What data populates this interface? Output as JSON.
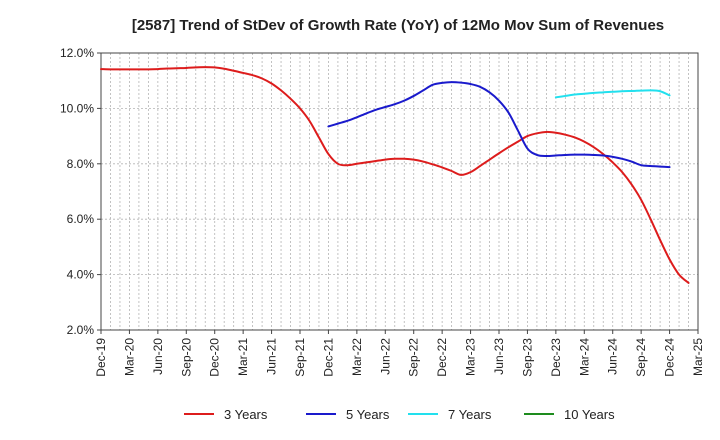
{
  "chart_data": {
    "type": "line",
    "title": "[2587]  Trend of StDev of Growth Rate (YoY) of 12Mo Mov Sum of Revenues",
    "xlabel": "",
    "ylabel": "",
    "ylim": [
      2.0,
      12.0
    ],
    "y_ticks": [
      "2.0%",
      "4.0%",
      "6.0%",
      "8.0%",
      "10.0%",
      "12.0%"
    ],
    "y_tick_values": [
      2.0,
      4.0,
      6.0,
      8.0,
      10.0,
      12.0
    ],
    "x_tick_labels": [
      "Dec-19",
      "Mar-20",
      "Jun-20",
      "Sep-20",
      "Dec-20",
      "Mar-21",
      "Jun-21",
      "Sep-21",
      "Dec-21",
      "Mar-22",
      "Jun-22",
      "Sep-22",
      "Dec-22",
      "Mar-23",
      "Jun-23",
      "Sep-23",
      "Dec-23",
      "Mar-24",
      "Jun-24",
      "Sep-24",
      "Dec-24",
      "Mar-25"
    ],
    "x_months_start": "Dec-19",
    "x_months_total": 63,
    "grid": true,
    "legend_position": "bottom",
    "series": [
      {
        "name": "3 Years",
        "color": "#dd1c1c",
        "start_month_index": 0,
        "values": [
          11.42,
          11.41,
          11.41,
          11.41,
          11.41,
          11.41,
          11.42,
          11.44,
          11.45,
          11.46,
          11.48,
          11.49,
          11.48,
          11.43,
          11.36,
          11.28,
          11.2,
          11.08,
          10.9,
          10.65,
          10.35,
          10.0,
          9.55,
          8.95,
          8.35,
          8.0,
          7.95,
          8.0,
          8.05,
          8.1,
          8.15,
          8.18,
          8.18,
          8.15,
          8.08,
          7.98,
          7.87,
          7.74,
          7.6,
          7.7,
          7.92,
          8.15,
          8.38,
          8.6,
          8.8,
          9.0,
          9.1,
          9.15,
          9.12,
          9.05,
          8.95,
          8.8,
          8.6,
          8.35,
          8.05,
          7.7,
          7.25,
          6.7,
          6.0,
          5.25,
          4.55,
          4.0,
          3.7
        ]
      },
      {
        "name": "5 Years",
        "color": "#1a1acc",
        "start_month_index": 24,
        "values": [
          9.35,
          9.45,
          9.55,
          9.68,
          9.82,
          9.95,
          10.05,
          10.15,
          10.28,
          10.45,
          10.65,
          10.85,
          10.92,
          10.95,
          10.93,
          10.88,
          10.78,
          10.58,
          10.28,
          9.85,
          9.2,
          8.55,
          8.32,
          8.28,
          8.3,
          8.32,
          8.33,
          8.33,
          8.32,
          8.3,
          8.25,
          8.18,
          8.08,
          7.95,
          7.92,
          7.9,
          7.88
        ]
      },
      {
        "name": "7 Years",
        "color": "#22e0ee",
        "start_month_index": 48,
        "values": [
          10.4,
          10.45,
          10.5,
          10.53,
          10.56,
          10.58,
          10.6,
          10.62,
          10.63,
          10.64,
          10.65,
          10.62,
          10.47
        ]
      },
      {
        "name": "10 Years",
        "color": "#1e8c1e",
        "start_month_index": 0,
        "values": []
      }
    ]
  }
}
